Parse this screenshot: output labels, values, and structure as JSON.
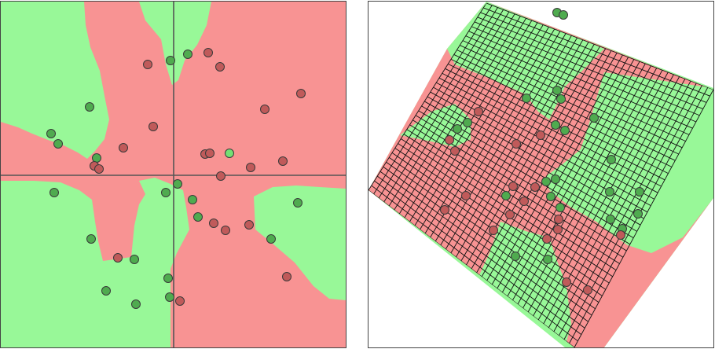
{
  "colors": {
    "class_a_region": "#f89393",
    "class_b_region": "#98f898",
    "class_a_point": "#c05a5a",
    "class_b_point": "#4fab4f",
    "highlight_point": "#74e074",
    "point_stroke": "#3a3a3a",
    "axis_line": "#555555",
    "grid_line": "#111111"
  },
  "panels": [
    {
      "name": "input-space-decision-regions",
      "axes": "crosshair"
    },
    {
      "name": "transformed-space-decision-regions",
      "grid": "warped-mesh"
    }
  ]
}
